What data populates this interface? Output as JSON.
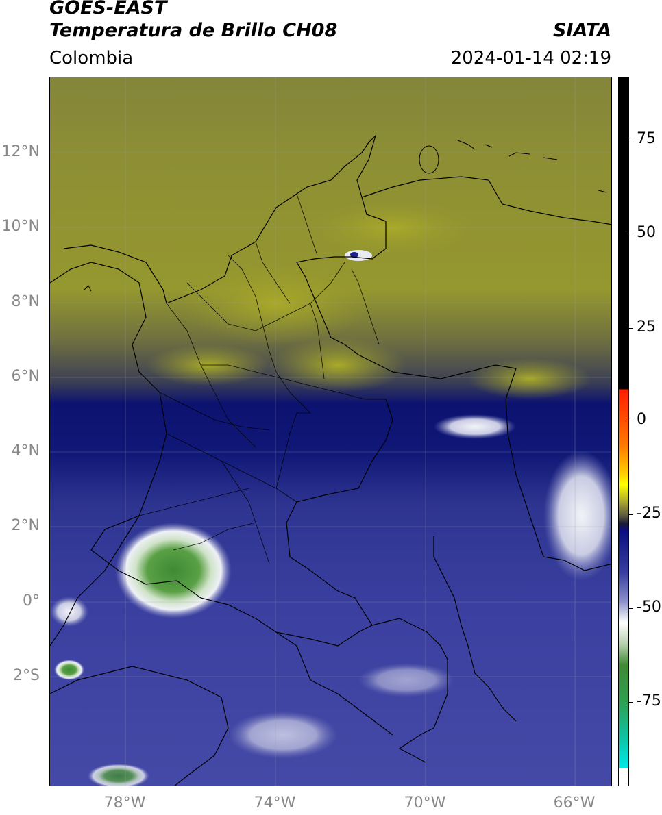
{
  "header": {
    "satellite": "GOES-EAST",
    "product": "Temperatura de Brillo CH08",
    "agency": "SIATA",
    "region": "Colombia",
    "datetime": "2024-01-14 02:19"
  },
  "map": {
    "lat_labels": [
      "12°N",
      "10°N",
      "8°N",
      "6°N",
      "4°N",
      "2°N",
      "0°",
      "2°S"
    ],
    "lon_labels": [
      "78°W",
      "74°W",
      "70°W",
      "66°W"
    ],
    "gridlines": true,
    "colors": {
      "warm_olive": "#8a8d35",
      "warm_yellow": "#a5a62a",
      "deep_blue": "#0c1270",
      "mid_blue": "#3a3f9c",
      "cold_white": "#dfe2ef",
      "very_cold_green": "#3f8a35"
    }
  },
  "colorbar": {
    "ticks": [
      "75",
      "50",
      "25",
      "0",
      "-25",
      "-50",
      "-75"
    ]
  }
}
